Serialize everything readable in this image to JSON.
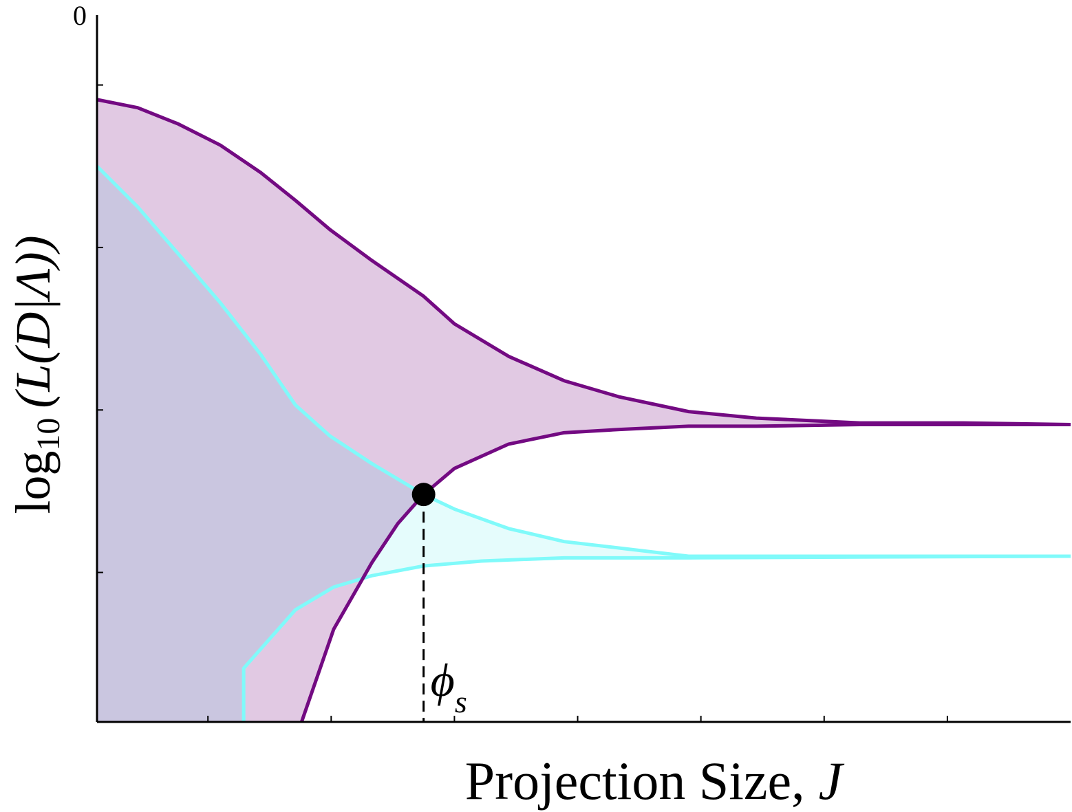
{
  "chart_data": {
    "type": "line",
    "ylabel": {
      "text": "log",
      "subscript": "10",
      "rest": "(L(D|Λ))"
    },
    "xlabel": {
      "text": "Projection Size,",
      "italic": "J"
    },
    "xlim": [
      0,
      7.9
    ],
    "xticks": [
      0.9,
      1.9,
      2.9,
      3.9,
      4.9,
      5.9,
      6.9
    ],
    "ylim": [
      -4.35,
      0
    ],
    "yticks": [
      0
    ],
    "ytick_marks": [
      -0.43,
      -1.43,
      -2.43,
      -3.43
    ],
    "series": [
      {
        "color": "#730a82",
        "fill": "#e1c9e3",
        "x": [
          0,
          0.33,
          0.66,
          1.0,
          1.33,
          1.61,
          1.89,
          2.23,
          2.65,
          2.9,
          3.34,
          3.79,
          4.24,
          4.8,
          5.35,
          6.19,
          7.03,
          7.9
        ],
        "values": [
          -0.52,
          -0.57,
          -0.67,
          -0.8,
          -0.97,
          -1.14,
          -1.32,
          -1.51,
          -1.73,
          -1.9,
          -2.1,
          -2.25,
          -2.35,
          -2.44,
          -2.48,
          -2.51,
          -2.51,
          -2.52
        ]
      },
      {
        "color": "#730a82",
        "x": [
          1.66,
          1.92,
          2.23,
          2.44,
          2.65,
          2.9,
          3.34,
          3.79,
          4.24,
          4.8,
          5.35,
          6.19,
          7.03,
          7.9
        ],
        "values": [
          -4.35,
          -3.78,
          -3.37,
          -3.13,
          -2.95,
          -2.79,
          -2.64,
          -2.57,
          -2.55,
          -2.53,
          -2.53,
          -2.52,
          -2.52,
          -2.52
        ]
      },
      {
        "color": "#80fafa",
        "fill": "#e5fcfc",
        "x": [
          0,
          0.33,
          0.66,
          1.0,
          1.33,
          1.61,
          1.89,
          2.23,
          2.65,
          2.9,
          3.34,
          3.79,
          4.24,
          4.8,
          5.35,
          6.19,
          7.03,
          7.9
        ],
        "values": [
          -0.93,
          -1.18,
          -1.47,
          -1.77,
          -2.09,
          -2.4,
          -2.59,
          -2.76,
          -2.95,
          -3.04,
          -3.16,
          -3.24,
          -3.28,
          -3.33,
          -3.33,
          -3.33,
          -3.33,
          -3.33
        ]
      },
      {
        "color": "#80fafa",
        "x": [
          1.19,
          1.19,
          1.61,
          1.92,
          2.23,
          2.65,
          3.12,
          3.79,
          4.8,
          7.9
        ],
        "values": [
          -4.35,
          -4.02,
          -3.66,
          -3.52,
          -3.45,
          -3.39,
          -3.36,
          -3.34,
          -3.34,
          -3.33
        ]
      }
    ],
    "annotation": {
      "symbol": "ϕ",
      "subscript": "s",
      "x": 2.65,
      "y": -2.95
    }
  }
}
